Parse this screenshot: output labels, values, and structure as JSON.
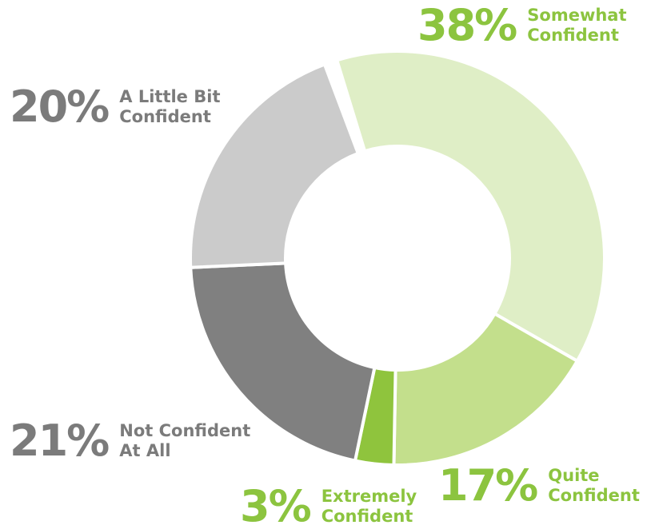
{
  "chart_data": {
    "type": "donut",
    "categories": [
      "Somewhat Confident",
      "Quite Confident",
      "Extremely Confident",
      "Not Confident At All",
      "A Little Bit Confident"
    ],
    "values": [
      38,
      17,
      3,
      21,
      20
    ],
    "value_labels": [
      "38%",
      "17%",
      "3%",
      "21%",
      "20%"
    ],
    "colors": [
      "#dfeec6",
      "#c3df8c",
      "#8fc43d",
      "#808080",
      "#cbcbcb"
    ],
    "label_colors": [
      "#8cc43f",
      "#8cc43f",
      "#8cc43f",
      "#7b7b7b",
      "#7b7b7b"
    ]
  }
}
